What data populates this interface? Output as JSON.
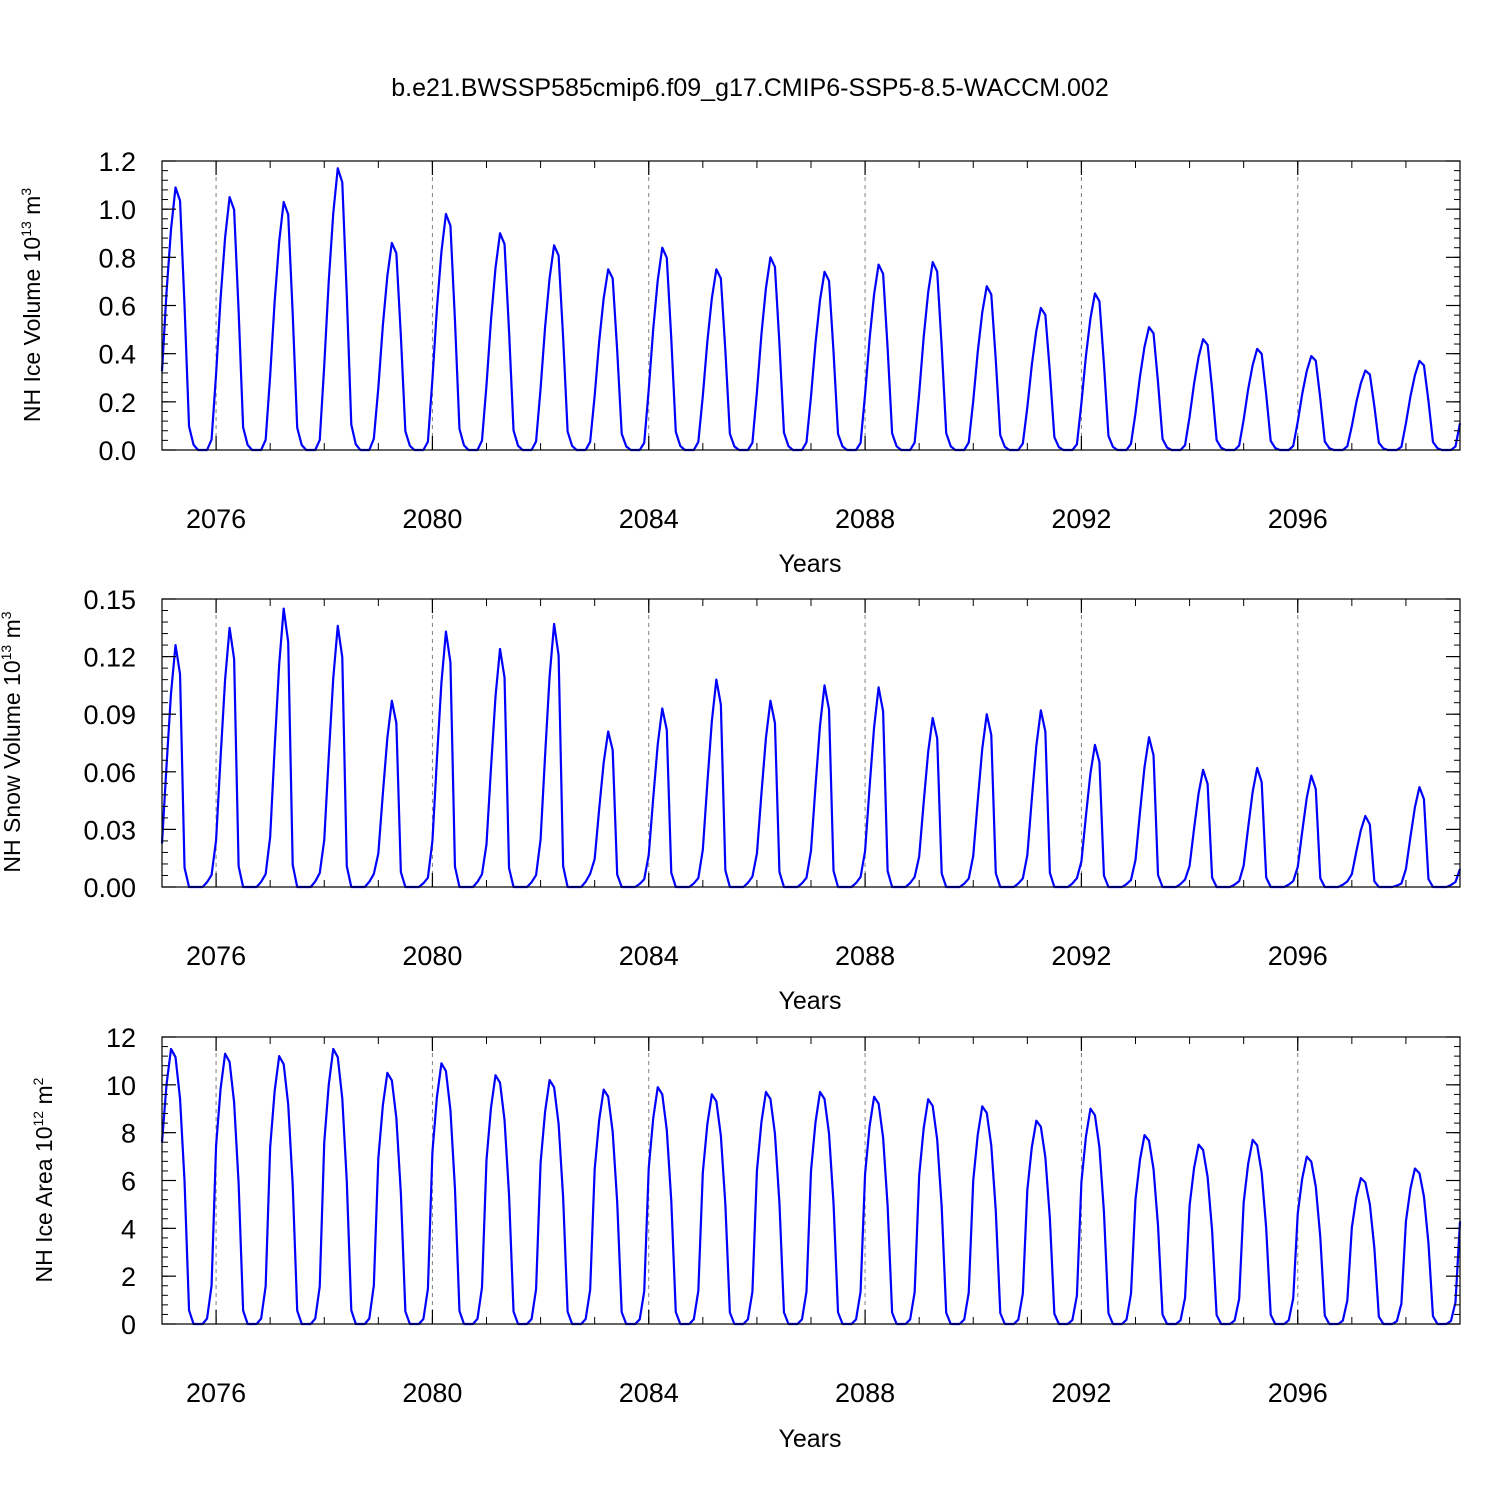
{
  "title": "b.e21.BWSSP585cmip6.f09_g17.CMIP6-SSP5-8.5-WACCM.002",
  "colors": {
    "line": "#0000ff",
    "axis": "#000000",
    "gridline": "#808080"
  },
  "chart_data": [
    {
      "type": "line",
      "ylabel": {
        "text": "NH Ice Volume 10",
        "exponent": "13",
        "unit": " m",
        "unit_exponent": "3"
      },
      "xlabel": "Years",
      "xlim": [
        2075.0,
        2099.0
      ],
      "ylim": [
        0.0,
        1.2
      ],
      "ytick_values": [
        0.0,
        0.2,
        0.4,
        0.6,
        0.8,
        1.0,
        1.2
      ],
      "ytick_labels": [
        "0.0",
        "0.2",
        "0.4",
        "0.6",
        "0.8",
        "1.0",
        "1.2"
      ],
      "ytick_minor_step": 0.04,
      "xtick_values": [
        2076,
        2080,
        2084,
        2088,
        2092,
        2096
      ],
      "xtick_labels": [
        "2076",
        "2080",
        "2084",
        "2088",
        "2092",
        "2096"
      ],
      "xtick_minor_step": 1,
      "vgrid": [
        2076,
        2080,
        2084,
        2088,
        2092,
        2096
      ],
      "series": [
        {
          "name": "NH Ice Volume",
          "start": 2075.0,
          "step": 0.0833333,
          "peaks": [
            1.09,
            1.05,
            1.03,
            1.17,
            0.86,
            0.98,
            0.9,
            0.85,
            0.75,
            0.84,
            0.75,
            0.8,
            0.74,
            0.77,
            0.78,
            0.68,
            0.59,
            0.65,
            0.51,
            0.46,
            0.42,
            0.39,
            0.33,
            0.37
          ],
          "pattern": [
            0.3,
            0.6,
            0.84,
            1.0,
            0.95,
            0.55,
            0.09,
            0.02,
            0.0,
            0.0,
            0.0,
            0.04
          ]
        }
      ]
    },
    {
      "type": "line",
      "ylabel": {
        "text": "NH Snow Volume 10",
        "exponent": "13",
        "unit": " m",
        "unit_exponent": "3"
      },
      "xlabel": "Years",
      "xlim": [
        2075.0,
        2099.0
      ],
      "ylim": [
        0.0,
        0.15
      ],
      "ytick_values": [
        0.0,
        0.03,
        0.06,
        0.09,
        0.12,
        0.15
      ],
      "ytick_labels": [
        "0.00",
        "0.03",
        "0.06",
        "0.09",
        "0.12",
        "0.15"
      ],
      "ytick_minor_step": 0.006,
      "xtick_values": [
        2076,
        2080,
        2084,
        2088,
        2092,
        2096
      ],
      "xtick_labels": [
        "2076",
        "2080",
        "2084",
        "2088",
        "2092",
        "2096"
      ],
      "xtick_minor_step": 1,
      "vgrid": [
        2076,
        2080,
        2084,
        2088,
        2092,
        2096
      ],
      "series": [
        {
          "name": "NH Snow Volume",
          "start": 2075.0,
          "step": 0.0833333,
          "peaks": [
            0.126,
            0.135,
            0.145,
            0.136,
            0.097,
            0.133,
            0.124,
            0.137,
            0.081,
            0.093,
            0.108,
            0.097,
            0.105,
            0.104,
            0.088,
            0.09,
            0.092,
            0.074,
            0.078,
            0.061,
            0.062,
            0.058,
            0.037,
            0.052
          ],
          "pattern": [
            0.18,
            0.5,
            0.8,
            1.0,
            0.88,
            0.08,
            0.0,
            0.0,
            0.0,
            0.0,
            0.02,
            0.05
          ]
        }
      ]
    },
    {
      "type": "line",
      "ylabel": {
        "text": "NH Ice Area 10",
        "exponent": "12",
        "unit": " m",
        "unit_exponent": "2"
      },
      "xlabel": "Years",
      "xlim": [
        2075.0,
        2099.0
      ],
      "ylim": [
        0,
        12
      ],
      "ytick_values": [
        0,
        2,
        4,
        6,
        8,
        10,
        12
      ],
      "ytick_labels": [
        "0",
        "2",
        "4",
        "6",
        "8",
        "10",
        "12"
      ],
      "ytick_minor_step": 0.4,
      "xtick_values": [
        2076,
        2080,
        2084,
        2088,
        2092,
        2096
      ],
      "xtick_labels": [
        "2076",
        "2080",
        "2084",
        "2088",
        "2092",
        "2096"
      ],
      "xtick_minor_step": 1,
      "vgrid": [
        2076,
        2080,
        2084,
        2088,
        2092,
        2096
      ],
      "series": [
        {
          "name": "NH Ice Area",
          "start": 2075.0,
          "step": 0.0833333,
          "peaks": [
            11.5,
            11.3,
            11.2,
            11.5,
            10.5,
            10.9,
            10.4,
            10.2,
            9.8,
            9.9,
            9.6,
            9.7,
            9.7,
            9.5,
            9.4,
            9.1,
            8.5,
            9.0,
            7.9,
            7.5,
            7.7,
            7.0,
            6.1,
            6.5
          ],
          "pattern": [
            0.66,
            0.87,
            1.0,
            0.97,
            0.82,
            0.52,
            0.05,
            0.0,
            0.0,
            0.0,
            0.02,
            0.14
          ]
        }
      ]
    }
  ]
}
